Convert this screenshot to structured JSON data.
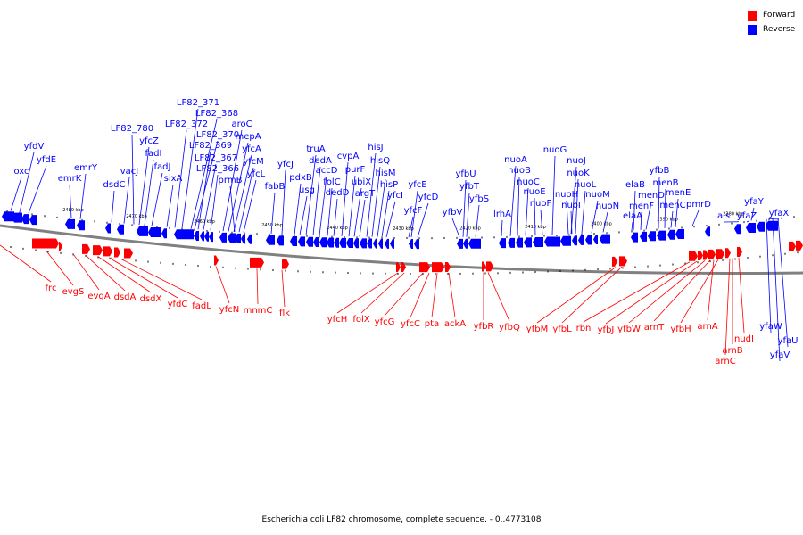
{
  "legend": [
    {
      "label": "Forward",
      "color": "#ff0000"
    },
    {
      "label": "Reverse",
      "color": "#0000ff"
    }
  ],
  "caption": "Escherichia coli LF82 chromosome, complete sequence. - 0..4773108",
  "colors": {
    "forward": "#ff0000",
    "reverse": "#0000ff",
    "backbone": "#808080"
  },
  "ticks": [
    "2480 kbp",
    "2470 kbp",
    "2460 kbp",
    "2450 kbp",
    "2440 kbp",
    "2430 kbp",
    "2420 kbp",
    "2410 kbp",
    "2400 kbp",
    "2390 kbp",
    "2380 kbp"
  ],
  "reverse_genes": [
    "oxc",
    "yfdV",
    "yfdE",
    "emrK",
    "emrY",
    "dsdC",
    "vacJ",
    "LF82_780",
    "yfcZ",
    "fadI",
    "fadJ",
    "sixA",
    "LF82_372",
    "LF82_371",
    "LF82_368",
    "LF82_370",
    "LF82_369",
    "LF82_367",
    "LF82_366",
    "aroC",
    "mepA",
    "yfcA",
    "yfcM",
    "prmB",
    "yfcL",
    "fabB",
    "yfcJ",
    "pdxB",
    "usg",
    "truA",
    "dedA",
    "accD",
    "folC",
    "dedD",
    "cvpA",
    "purF",
    "ubiX",
    "argT",
    "hisJ",
    "hisQ",
    "hisM",
    "hisP",
    "yfcI",
    "yfcE",
    "yfcF",
    "yfcD",
    "yfbV",
    "yfbU",
    "yfbT",
    "yfbS",
    "lrhA",
    "nuoA",
    "nuoB",
    "nuoC",
    "nuoE",
    "nuoF",
    "nuoG",
    "nuoJ",
    "nuoK",
    "nuoH",
    "nuoI",
    "nuoL",
    "nuoM",
    "nuoN",
    "elaB",
    "menF",
    "menD",
    "elaA",
    "yfbB",
    "menB",
    "menC",
    "menE",
    "pmrD",
    "ais",
    "yfaY",
    "yfaZ",
    "yfaX",
    "yfaW",
    "yfaU",
    "yfaV"
  ],
  "forward_genes": [
    "frc",
    "evgS",
    "evgA",
    "dsdA",
    "dsdX",
    "yfdC",
    "fadL",
    "yfcN",
    "mnmC",
    "flk",
    "yfcH",
    "folX",
    "yfcG",
    "yfcC",
    "pta",
    "ackA",
    "yfbR",
    "yfbQ",
    "yfbM",
    "yfbL",
    "rbn",
    "yfbJ",
    "yfbW",
    "arnT",
    "yfbH",
    "arnA",
    "nudI",
    "arnB",
    "arnC"
  ]
}
